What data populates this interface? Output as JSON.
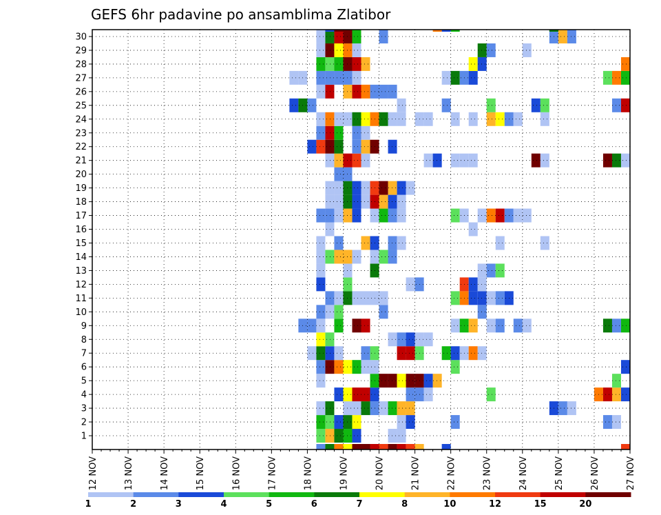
{
  "chart_data": {
    "type": "heatmap",
    "title": "GEFS 6hr padavine po ansamblima Zlatibor",
    "xlabel": "",
    "ylabel": "",
    "x_ticks": [
      "12 NOV",
      "13 NOV",
      "14 NOV",
      "15 NOV",
      "16 NOV",
      "17 NOV",
      "18 NOV",
      "19 NOV",
      "20 NOV",
      "21 NOV",
      "22 NOV",
      "23 NOV",
      "24 NOV",
      "25 NOV",
      "26 NOV",
      "27 NOV"
    ],
    "y_ticks": [
      1,
      2,
      3,
      4,
      5,
      6,
      7,
      8,
      9,
      10,
      11,
      12,
      13,
      14,
      15,
      16,
      17,
      18,
      19,
      20,
      21,
      22,
      23,
      24,
      25,
      26,
      27,
      28,
      29,
      30
    ],
    "x_unit": "6-hour step from 12 NOV 00Z (4 steps per day)",
    "grid": true,
    "legend": {
      "position": "bottom",
      "labels": [
        "1",
        "2",
        "3",
        "4",
        "5",
        "6",
        "7",
        "8",
        "10",
        "12",
        "15",
        "20"
      ],
      "colors": [
        "#b0c4f4",
        "#5b8ae8",
        "#1a4ad8",
        "#5ce05c",
        "#10b810",
        "#0a7a0a",
        "#ffff00",
        "#ffb428",
        "#ff7a00",
        "#f03a10",
        "#c00000",
        "#700000"
      ]
    },
    "cells": [
      [
        26,
        1,
        4
      ],
      [
        27,
        1,
        8
      ],
      [
        28,
        1,
        6
      ],
      [
        29,
        1,
        5
      ],
      [
        30,
        1,
        3
      ],
      [
        34,
        1,
        1
      ],
      [
        35,
        1,
        1
      ],
      [
        26,
        2,
        5
      ],
      [
        27,
        2,
        4
      ],
      [
        28,
        2,
        3
      ],
      [
        29,
        2,
        6
      ],
      [
        30,
        2,
        7
      ],
      [
        35,
        2,
        1
      ],
      [
        36,
        2,
        3
      ],
      [
        41,
        2,
        2
      ],
      [
        58,
        2,
        2
      ],
      [
        59,
        2,
        1
      ],
      [
        26,
        3,
        1
      ],
      [
        27,
        3,
        6
      ],
      [
        29,
        3,
        1
      ],
      [
        30,
        3,
        1
      ],
      [
        31,
        3,
        6
      ],
      [
        32,
        3,
        2
      ],
      [
        33,
        3,
        1
      ],
      [
        34,
        3,
        5
      ],
      [
        35,
        3,
        8
      ],
      [
        36,
        3,
        8
      ],
      [
        52,
        3,
        3
      ],
      [
        53,
        3,
        2
      ],
      [
        54,
        3,
        1
      ],
      [
        28,
        4,
        3
      ],
      [
        29,
        4,
        7
      ],
      [
        30,
        4,
        11
      ],
      [
        31,
        4,
        11
      ],
      [
        32,
        4,
        3
      ],
      [
        36,
        4,
        2
      ],
      [
        37,
        4,
        2
      ],
      [
        38,
        4,
        1
      ],
      [
        45,
        4,
        4
      ],
      [
        57,
        4,
        9
      ],
      [
        58,
        4,
        11
      ],
      [
        59,
        4,
        8
      ],
      [
        60,
        4,
        3
      ],
      [
        26,
        5,
        1
      ],
      [
        32,
        5,
        5
      ],
      [
        33,
        5,
        12
      ],
      [
        34,
        5,
        12
      ],
      [
        35,
        5,
        7
      ],
      [
        36,
        5,
        12
      ],
      [
        37,
        5,
        12
      ],
      [
        38,
        5,
        3
      ],
      [
        39,
        5,
        8
      ],
      [
        59,
        5,
        4
      ],
      [
        26,
        6,
        2
      ],
      [
        27,
        6,
        12
      ],
      [
        28,
        6,
        9
      ],
      [
        29,
        6,
        7
      ],
      [
        30,
        6,
        5
      ],
      [
        31,
        6,
        1
      ],
      [
        32,
        6,
        1
      ],
      [
        41,
        6,
        4
      ],
      [
        60,
        6,
        3
      ],
      [
        25,
        7,
        1
      ],
      [
        26,
        7,
        6
      ],
      [
        27,
        7,
        3
      ],
      [
        28,
        7,
        1
      ],
      [
        31,
        7,
        2
      ],
      [
        32,
        7,
        4
      ],
      [
        35,
        7,
        11
      ],
      [
        36,
        7,
        11
      ],
      [
        37,
        7,
        4
      ],
      [
        40,
        7,
        5
      ],
      [
        41,
        7,
        3
      ],
      [
        42,
        7,
        1
      ],
      [
        43,
        7,
        9
      ],
      [
        44,
        7,
        1
      ],
      [
        26,
        8,
        7
      ],
      [
        27,
        8,
        4
      ],
      [
        34,
        8,
        1
      ],
      [
        35,
        8,
        2
      ],
      [
        36,
        8,
        3
      ],
      [
        37,
        8,
        1
      ],
      [
        38,
        8,
        1
      ],
      [
        24,
        9,
        2
      ],
      [
        25,
        9,
        2
      ],
      [
        26,
        9,
        1
      ],
      [
        28,
        9,
        5
      ],
      [
        30,
        9,
        12
      ],
      [
        31,
        9,
        11
      ],
      [
        41,
        9,
        1
      ],
      [
        42,
        9,
        5
      ],
      [
        43,
        9,
        8
      ],
      [
        45,
        9,
        1
      ],
      [
        46,
        9,
        2
      ],
      [
        48,
        9,
        2
      ],
      [
        49,
        9,
        1
      ],
      [
        58,
        9,
        6
      ],
      [
        59,
        9,
        2
      ],
      [
        60,
        9,
        5
      ],
      [
        26,
        10,
        2
      ],
      [
        27,
        10,
        1
      ],
      [
        28,
        10,
        4
      ],
      [
        33,
        10,
        2
      ],
      [
        44,
        10,
        2
      ],
      [
        27,
        11,
        2
      ],
      [
        28,
        11,
        1
      ],
      [
        29,
        11,
        6
      ],
      [
        30,
        11,
        1
      ],
      [
        31,
        11,
        1
      ],
      [
        32,
        11,
        1
      ],
      [
        33,
        11,
        1
      ],
      [
        41,
        11,
        4
      ],
      [
        42,
        11,
        9
      ],
      [
        43,
        11,
        3
      ],
      [
        44,
        11,
        3
      ],
      [
        45,
        11,
        1
      ],
      [
        46,
        11,
        2
      ],
      [
        47,
        11,
        3
      ],
      [
        26,
        12,
        3
      ],
      [
        29,
        12,
        4
      ],
      [
        36,
        12,
        1
      ],
      [
        37,
        12,
        2
      ],
      [
        42,
        12,
        10
      ],
      [
        43,
        12,
        3
      ],
      [
        44,
        12,
        1
      ],
      [
        26,
        13,
        1
      ],
      [
        29,
        13,
        1
      ],
      [
        32,
        13,
        6
      ],
      [
        44,
        13,
        1
      ],
      [
        45,
        13,
        2
      ],
      [
        46,
        13,
        4
      ],
      [
        26,
        14,
        1
      ],
      [
        27,
        14,
        4
      ],
      [
        28,
        14,
        8
      ],
      [
        29,
        14,
        8
      ],
      [
        30,
        14,
        1
      ],
      [
        32,
        14,
        1
      ],
      [
        33,
        14,
        4
      ],
      [
        34,
        14,
        2
      ],
      [
        26,
        15,
        1
      ],
      [
        28,
        15,
        2
      ],
      [
        31,
        15,
        8
      ],
      [
        32,
        15,
        3
      ],
      [
        34,
        15,
        2
      ],
      [
        35,
        15,
        1
      ],
      [
        46,
        15,
        1
      ],
      [
        51,
        15,
        1
      ],
      [
        27,
        16,
        1
      ],
      [
        43,
        16,
        1
      ],
      [
        26,
        17,
        2
      ],
      [
        27,
        17,
        2
      ],
      [
        28,
        17,
        1
      ],
      [
        29,
        17,
        8
      ],
      [
        30,
        17,
        3
      ],
      [
        32,
        17,
        1
      ],
      [
        33,
        17,
        5
      ],
      [
        34,
        17,
        2
      ],
      [
        35,
        17,
        1
      ],
      [
        41,
        17,
        4
      ],
      [
        42,
        17,
        1
      ],
      [
        44,
        17,
        1
      ],
      [
        45,
        17,
        9
      ],
      [
        46,
        17,
        11
      ],
      [
        47,
        17,
        2
      ],
      [
        48,
        17,
        1
      ],
      [
        49,
        17,
        1
      ],
      [
        27,
        18,
        1
      ],
      [
        28,
        18,
        1
      ],
      [
        29,
        18,
        6
      ],
      [
        30,
        18,
        3
      ],
      [
        31,
        18,
        1
      ],
      [
        32,
        18,
        11
      ],
      [
        33,
        18,
        8
      ],
      [
        34,
        18,
        3
      ],
      [
        35,
        18,
        1
      ],
      [
        27,
        19,
        1
      ],
      [
        28,
        19,
        1
      ],
      [
        29,
        19,
        6
      ],
      [
        30,
        19,
        3
      ],
      [
        31,
        19,
        1
      ],
      [
        32,
        19,
        10
      ],
      [
        33,
        19,
        12
      ],
      [
        34,
        19,
        8
      ],
      [
        35,
        19,
        3
      ],
      [
        36,
        19,
        1
      ],
      [
        28,
        20,
        2
      ],
      [
        29,
        20,
        2
      ],
      [
        27,
        21,
        1
      ],
      [
        28,
        21,
        8
      ],
      [
        29,
        21,
        11
      ],
      [
        30,
        21,
        10
      ],
      [
        31,
        21,
        1
      ],
      [
        38,
        21,
        1
      ],
      [
        39,
        21,
        3
      ],
      [
        41,
        21,
        1
      ],
      [
        42,
        21,
        1
      ],
      [
        43,
        21,
        1
      ],
      [
        50,
        21,
        12
      ],
      [
        51,
        21,
        1
      ],
      [
        58,
        21,
        12
      ],
      [
        59,
        21,
        6
      ],
      [
        60,
        21,
        1
      ],
      [
        25,
        22,
        3
      ],
      [
        26,
        22,
        10
      ],
      [
        27,
        22,
        12
      ],
      [
        28,
        22,
        6
      ],
      [
        30,
        22,
        2
      ],
      [
        31,
        22,
        8
      ],
      [
        32,
        22,
        12
      ],
      [
        34,
        22,
        3
      ],
      [
        26,
        23,
        2
      ],
      [
        27,
        23,
        11
      ],
      [
        28,
        23,
        5
      ],
      [
        30,
        23,
        2
      ],
      [
        31,
        23,
        1
      ],
      [
        26,
        24,
        1
      ],
      [
        27,
        24,
        9
      ],
      [
        28,
        24,
        1
      ],
      [
        29,
        24,
        1
      ],
      [
        30,
        24,
        6
      ],
      [
        31,
        24,
        7
      ],
      [
        32,
        24,
        9
      ],
      [
        33,
        24,
        6
      ],
      [
        34,
        24,
        1
      ],
      [
        35,
        24,
        1
      ],
      [
        37,
        24,
        1
      ],
      [
        38,
        24,
        1
      ],
      [
        41,
        24,
        1
      ],
      [
        43,
        24,
        1
      ],
      [
        45,
        24,
        8
      ],
      [
        46,
        24,
        7
      ],
      [
        47,
        24,
        2
      ],
      [
        48,
        24,
        1
      ],
      [
        51,
        24,
        1
      ],
      [
        23,
        25,
        3
      ],
      [
        24,
        25,
        6
      ],
      [
        25,
        25,
        2
      ],
      [
        35,
        25,
        1
      ],
      [
        40,
        25,
        2
      ],
      [
        45,
        25,
        4
      ],
      [
        50,
        25,
        3
      ],
      [
        51,
        25,
        4
      ],
      [
        59,
        25,
        2
      ],
      [
        60,
        25,
        11
      ],
      [
        26,
        26,
        1
      ],
      [
        27,
        26,
        11
      ],
      [
        29,
        26,
        8
      ],
      [
        30,
        26,
        11
      ],
      [
        31,
        26,
        9
      ],
      [
        32,
        26,
        2
      ],
      [
        33,
        26,
        2
      ],
      [
        34,
        26,
        2
      ],
      [
        23,
        27,
        1
      ],
      [
        24,
        27,
        1
      ],
      [
        26,
        27,
        2
      ],
      [
        27,
        27,
        2
      ],
      [
        28,
        27,
        2
      ],
      [
        29,
        27,
        2
      ],
      [
        30,
        27,
        1
      ],
      [
        40,
        27,
        1
      ],
      [
        41,
        27,
        6
      ],
      [
        42,
        27,
        2
      ],
      [
        43,
        27,
        3
      ],
      [
        58,
        27,
        4
      ],
      [
        59,
        27,
        9
      ],
      [
        60,
        27,
        5
      ],
      [
        26,
        28,
        5
      ],
      [
        27,
        28,
        4
      ],
      [
        28,
        28,
        5
      ],
      [
        29,
        28,
        12
      ],
      [
        30,
        28,
        11
      ],
      [
        31,
        28,
        8
      ],
      [
        43,
        28,
        7
      ],
      [
        44,
        28,
        3
      ],
      [
        60,
        28,
        9
      ],
      [
        26,
        29,
        1
      ],
      [
        27,
        29,
        12
      ],
      [
        28,
        29,
        7
      ],
      [
        29,
        29,
        9
      ],
      [
        30,
        29,
        1
      ],
      [
        44,
        29,
        6
      ],
      [
        45,
        29,
        2
      ],
      [
        49,
        29,
        1
      ],
      [
        26,
        30,
        1
      ],
      [
        27,
        30,
        6
      ],
      [
        28,
        30,
        11
      ],
      [
        29,
        30,
        12
      ],
      [
        30,
        30,
        5
      ],
      [
        33,
        30,
        2
      ],
      [
        52,
        30,
        2
      ],
      [
        53,
        30,
        8
      ],
      [
        54,
        30,
        2
      ],
      [
        27,
        31,
        3
      ],
      [
        28,
        31,
        12
      ],
      [
        39,
        31,
        9
      ],
      [
        40,
        31,
        3
      ],
      [
        41,
        31,
        5
      ],
      [
        52,
        31,
        6
      ]
    ],
    "bottom_strip": [
      [
        26,
        2
      ],
      [
        27,
        6
      ],
      [
        28,
        9
      ],
      [
        29,
        7
      ],
      [
        30,
        12
      ],
      [
        31,
        12
      ],
      [
        32,
        11
      ],
      [
        33,
        10
      ],
      [
        34,
        12
      ],
      [
        35,
        11
      ],
      [
        36,
        10
      ],
      [
        37,
        8
      ],
      [
        40,
        3
      ],
      [
        60,
        10
      ]
    ]
  }
}
